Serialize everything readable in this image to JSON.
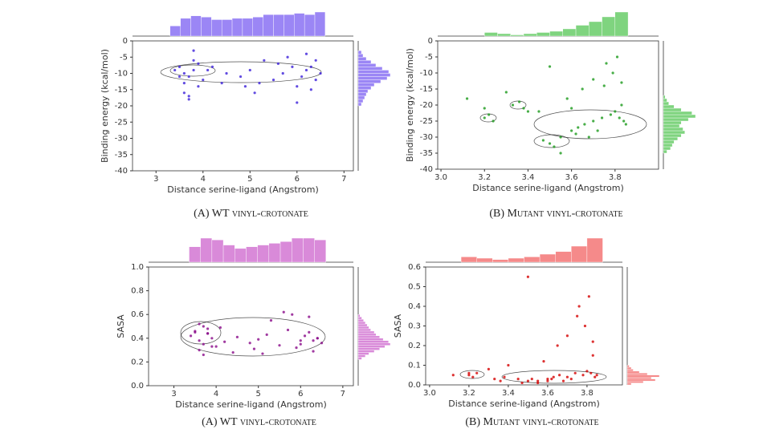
{
  "chart_data": [
    {
      "type": "scatter",
      "caption": "(A) WT vinyl-crotonate",
      "xlabel": "Distance serine-ligand (Angstrom)",
      "ylabel": "Binding energy (kcal/mol)",
      "color": "#3b1fd9",
      "hist_color": "#9b86f5",
      "xlim": [
        2.5,
        7.2
      ],
      "xticks": [
        3,
        4,
        5,
        6,
        7
      ],
      "ylim": [
        -40,
        0
      ],
      "yticks": [
        -40,
        -35,
        -30,
        -25,
        -20,
        -15,
        -10,
        -5,
        0
      ],
      "points": {
        "x": [
          3.4,
          3.5,
          3.6,
          3.7,
          3.8,
          3.9,
          4.0,
          3.6,
          3.7,
          3.8,
          4.2,
          4.5,
          4.8,
          5.0,
          5.2,
          5.5,
          5.7,
          5.9,
          6.0,
          6.1,
          6.2,
          6.3,
          6.4,
          6.5,
          5.3,
          5.8,
          6.2,
          4.4,
          3.7,
          3.6,
          3.8,
          6.0,
          5.6,
          4.9,
          3.5,
          6.4,
          5.1,
          4.1,
          3.9,
          6.3
        ],
        "y": [
          -9,
          -8,
          -10,
          -11,
          -9,
          -7,
          -12,
          -16,
          -17,
          -6,
          -8,
          -10,
          -11,
          -9,
          -13,
          -12,
          -10,
          -8,
          -14,
          -11,
          -9,
          -15,
          -12,
          -10,
          -6,
          -5,
          -4,
          -13,
          -18,
          -13,
          -3,
          -19,
          -7,
          -14,
          -11,
          -6,
          -16,
          -9,
          -14,
          -8
        ]
      },
      "x_hist": {
        "bins": [
          3.3,
          3.52,
          3.74,
          3.96,
          4.18,
          4.4,
          4.62,
          4.84,
          5.06,
          5.28,
          5.5,
          5.72,
          5.94,
          6.16,
          6.38,
          6.6
        ],
        "counts": [
          8,
          14,
          16,
          15,
          13,
          13,
          14,
          14,
          15,
          17,
          17,
          17,
          18,
          17,
          19
        ]
      },
      "y_hist": {
        "bins": [
          -20,
          -19,
          -18,
          -17,
          -16,
          -15,
          -14,
          -13,
          -12,
          -11,
          -10,
          -9,
          -8,
          -7,
          -6,
          -5,
          -4,
          -3
        ],
        "counts": [
          2,
          3,
          4,
          5,
          6,
          8,
          10,
          14,
          18,
          20,
          19,
          15,
          11,
          8,
          5,
          3,
          2
        ]
      }
    },
    {
      "type": "scatter",
      "caption": "(B) Mutant vinyl-crotonate",
      "xlabel": "Distance serine-ligand (Angstrom)",
      "ylabel": "Binding energy (kcal/mol)",
      "color": "#1a9a1a",
      "hist_color": "#7fd47f",
      "xlim": [
        2.985,
        4.0
      ],
      "xticks": [
        {
          "value": 3,
          "label": "3.0"
        },
        {
          "value": 3.2,
          "label": "3.2"
        },
        {
          "value": 3.4,
          "label": "3.4"
        },
        {
          "value": 3.6,
          "label": "3.6"
        },
        {
          "value": 3.8,
          "label": "3.8"
        }
      ],
      "ylim": [
        -40,
        0
      ],
      "yticks": [
        -40,
        -35,
        -30,
        -25,
        -20,
        -15,
        -10,
        -5,
        0
      ],
      "points": {
        "x": [
          3.2,
          3.22,
          3.24,
          3.33,
          3.36,
          3.38,
          3.47,
          3.5,
          3.52,
          3.55,
          3.6,
          3.63,
          3.66,
          3.7,
          3.74,
          3.78,
          3.8,
          3.82,
          3.84,
          3.85,
          3.79,
          3.81,
          3.7,
          3.65,
          3.58,
          3.45,
          3.3,
          3.12,
          3.5,
          3.75,
          3.83,
          3.6,
          3.4,
          3.68,
          3.72,
          3.55,
          3.76,
          3.83,
          3.62,
          3.2
        ],
        "y": [
          -24,
          -23,
          -25,
          -20,
          -19,
          -21,
          -31,
          -32,
          -33,
          -30,
          -28,
          -27,
          -26,
          -25,
          -24,
          -23,
          -22,
          -24,
          -25,
          -26,
          -10,
          -5,
          -12,
          -15,
          -18,
          -22,
          -16,
          -18,
          -8,
          -14,
          -20,
          -21,
          -22,
          -30,
          -28,
          -35,
          -7,
          -13,
          -29,
          -21
        ]
      },
      "x_hist": {
        "bins": [
          3.2,
          3.26,
          3.32,
          3.38,
          3.44,
          3.5,
          3.56,
          3.62,
          3.68,
          3.74,
          3.8,
          3.86
        ],
        "counts": [
          3,
          2,
          1,
          2,
          3,
          4,
          6,
          9,
          12,
          16,
          20
        ]
      },
      "y_hist": {
        "bins": [
          -35,
          -34,
          -33,
          -32,
          -31,
          -30,
          -29,
          -28,
          -27,
          -26,
          -25,
          -24,
          -23,
          -22,
          -21,
          -20,
          -19,
          -18,
          -17
        ],
        "counts": [
          2,
          4,
          5,
          6,
          8,
          10,
          12,
          11,
          9,
          10,
          14,
          18,
          16,
          10,
          6,
          3,
          2,
          1
        ]
      }
    },
    {
      "type": "scatter",
      "caption": "(A) WT vinyl-crotonate",
      "xlabel": "Distance serine-ligand (Angstrom)",
      "ylabel": "SASA",
      "color": "#8a0a8a",
      "hist_color": "#d98ad9",
      "xlim": [
        2.4,
        7.25
      ],
      "xticks": [
        3,
        4,
        5,
        6,
        7
      ],
      "ylim": [
        0,
        1
      ],
      "yticks": [
        {
          "value": 0,
          "label": "0.0"
        },
        {
          "value": 0.2,
          "label": "0.2"
        },
        {
          "value": 0.4,
          "label": "0.4"
        },
        {
          "value": 0.6,
          "label": "0.6"
        },
        {
          "value": 0.8,
          "label": "0.8"
        },
        {
          "value": 1,
          "label": "1.0"
        }
      ],
      "points": {
        "x": [
          3.4,
          3.5,
          3.6,
          3.7,
          3.8,
          3.9,
          4.0,
          3.6,
          3.7,
          3.8,
          4.2,
          4.5,
          4.8,
          5.0,
          5.2,
          5.5,
          5.7,
          5.9,
          6.0,
          6.1,
          6.2,
          6.3,
          6.4,
          6.5,
          5.3,
          5.8,
          6.2,
          4.4,
          3.7,
          3.6,
          3.8,
          6.0,
          5.6,
          4.9,
          3.5,
          6.4,
          5.1,
          4.1,
          3.9,
          6.3
        ],
        "y": [
          0.42,
          0.45,
          0.38,
          0.35,
          0.48,
          0.4,
          0.33,
          0.3,
          0.5,
          0.44,
          0.37,
          0.41,
          0.36,
          0.39,
          0.43,
          0.34,
          0.47,
          0.32,
          0.38,
          0.42,
          0.45,
          0.29,
          0.4,
          0.36,
          0.55,
          0.6,
          0.58,
          0.28,
          0.26,
          0.52,
          0.44,
          0.35,
          0.62,
          0.31,
          0.46,
          0.4,
          0.27,
          0.49,
          0.33,
          0.38
        ]
      },
      "x_hist": {
        "bins": [
          3.36,
          3.63,
          3.9,
          4.17,
          4.44,
          4.71,
          4.98,
          5.25,
          5.52,
          5.79,
          6.06,
          6.33,
          6.6
        ],
        "counts": [
          9,
          14,
          13,
          10,
          8,
          9,
          10,
          11,
          12,
          14,
          14,
          13
        ]
      },
      "y_hist": {
        "bins": [
          0.22,
          0.24,
          0.26,
          0.28,
          0.3,
          0.32,
          0.34,
          0.36,
          0.38,
          0.4,
          0.42,
          0.44,
          0.46,
          0.48,
          0.5,
          0.52,
          0.54,
          0.56,
          0.58,
          0.6
        ],
        "counts": [
          2,
          4,
          6,
          9,
          12,
          15,
          18,
          17,
          14,
          12,
          10,
          9,
          7,
          6,
          5,
          4,
          3,
          2,
          1
        ]
      }
    },
    {
      "type": "scatter",
      "caption": "(B) Mutant vinyl-crotonate",
      "xlabel": "Distance serine-ligand (Angstrom)",
      "ylabel": "SASA",
      "color": "#d40000",
      "hist_color": "#f58a8a",
      "xlim": [
        2.98,
        3.98
      ],
      "xticks": [
        {
          "value": 3,
          "label": "3.0"
        },
        {
          "value": 3.2,
          "label": "3.2"
        },
        {
          "value": 3.4,
          "label": "3.4"
        },
        {
          "value": 3.6,
          "label": "3.6"
        },
        {
          "value": 3.8,
          "label": "3.8"
        }
      ],
      "ylim": [
        0,
        0.6
      ],
      "yticks": [
        {
          "value": 0,
          "label": "0.0"
        },
        0.1,
        0.2,
        0.3,
        0.4,
        0.5,
        0.6
      ],
      "points": {
        "x": [
          3.2,
          3.22,
          3.24,
          3.33,
          3.36,
          3.38,
          3.47,
          3.5,
          3.52,
          3.55,
          3.6,
          3.63,
          3.66,
          3.7,
          3.74,
          3.78,
          3.8,
          3.82,
          3.84,
          3.85,
          3.79,
          3.81,
          3.7,
          3.65,
          3.58,
          3.45,
          3.3,
          3.12,
          3.5,
          3.75,
          3.83,
          3.6,
          3.4,
          3.68,
          3.72,
          3.55,
          3.76,
          3.83,
          3.62,
          3.2
        ],
        "y": [
          0.05,
          0.04,
          0.06,
          0.03,
          0.02,
          0.04,
          0.01,
          0.02,
          0.03,
          0.02,
          0.03,
          0.04,
          0.05,
          0.04,
          0.06,
          0.05,
          0.07,
          0.06,
          0.04,
          0.05,
          0.3,
          0.45,
          0.25,
          0.2,
          0.12,
          0.03,
          0.08,
          0.05,
          0.55,
          0.35,
          0.15,
          0.02,
          0.1,
          0.02,
          0.03,
          0.01,
          0.4,
          0.22,
          0.03,
          0.06
        ]
      },
      "x_hist": {
        "bins": [
          3.16,
          3.24,
          3.32,
          3.4,
          3.48,
          3.56,
          3.64,
          3.72,
          3.8,
          3.88
        ],
        "counts": [
          4,
          3,
          2,
          3,
          4,
          6,
          8,
          12,
          18
        ]
      },
      "y_hist": {
        "bins": [
          0,
          0.01,
          0.02,
          0.03,
          0.04,
          0.05,
          0.06,
          0.07,
          0.08,
          0.09,
          0.1
        ],
        "counts": [
          2,
          8,
          14,
          12,
          16,
          10,
          6,
          3,
          2,
          1
        ]
      }
    }
  ]
}
